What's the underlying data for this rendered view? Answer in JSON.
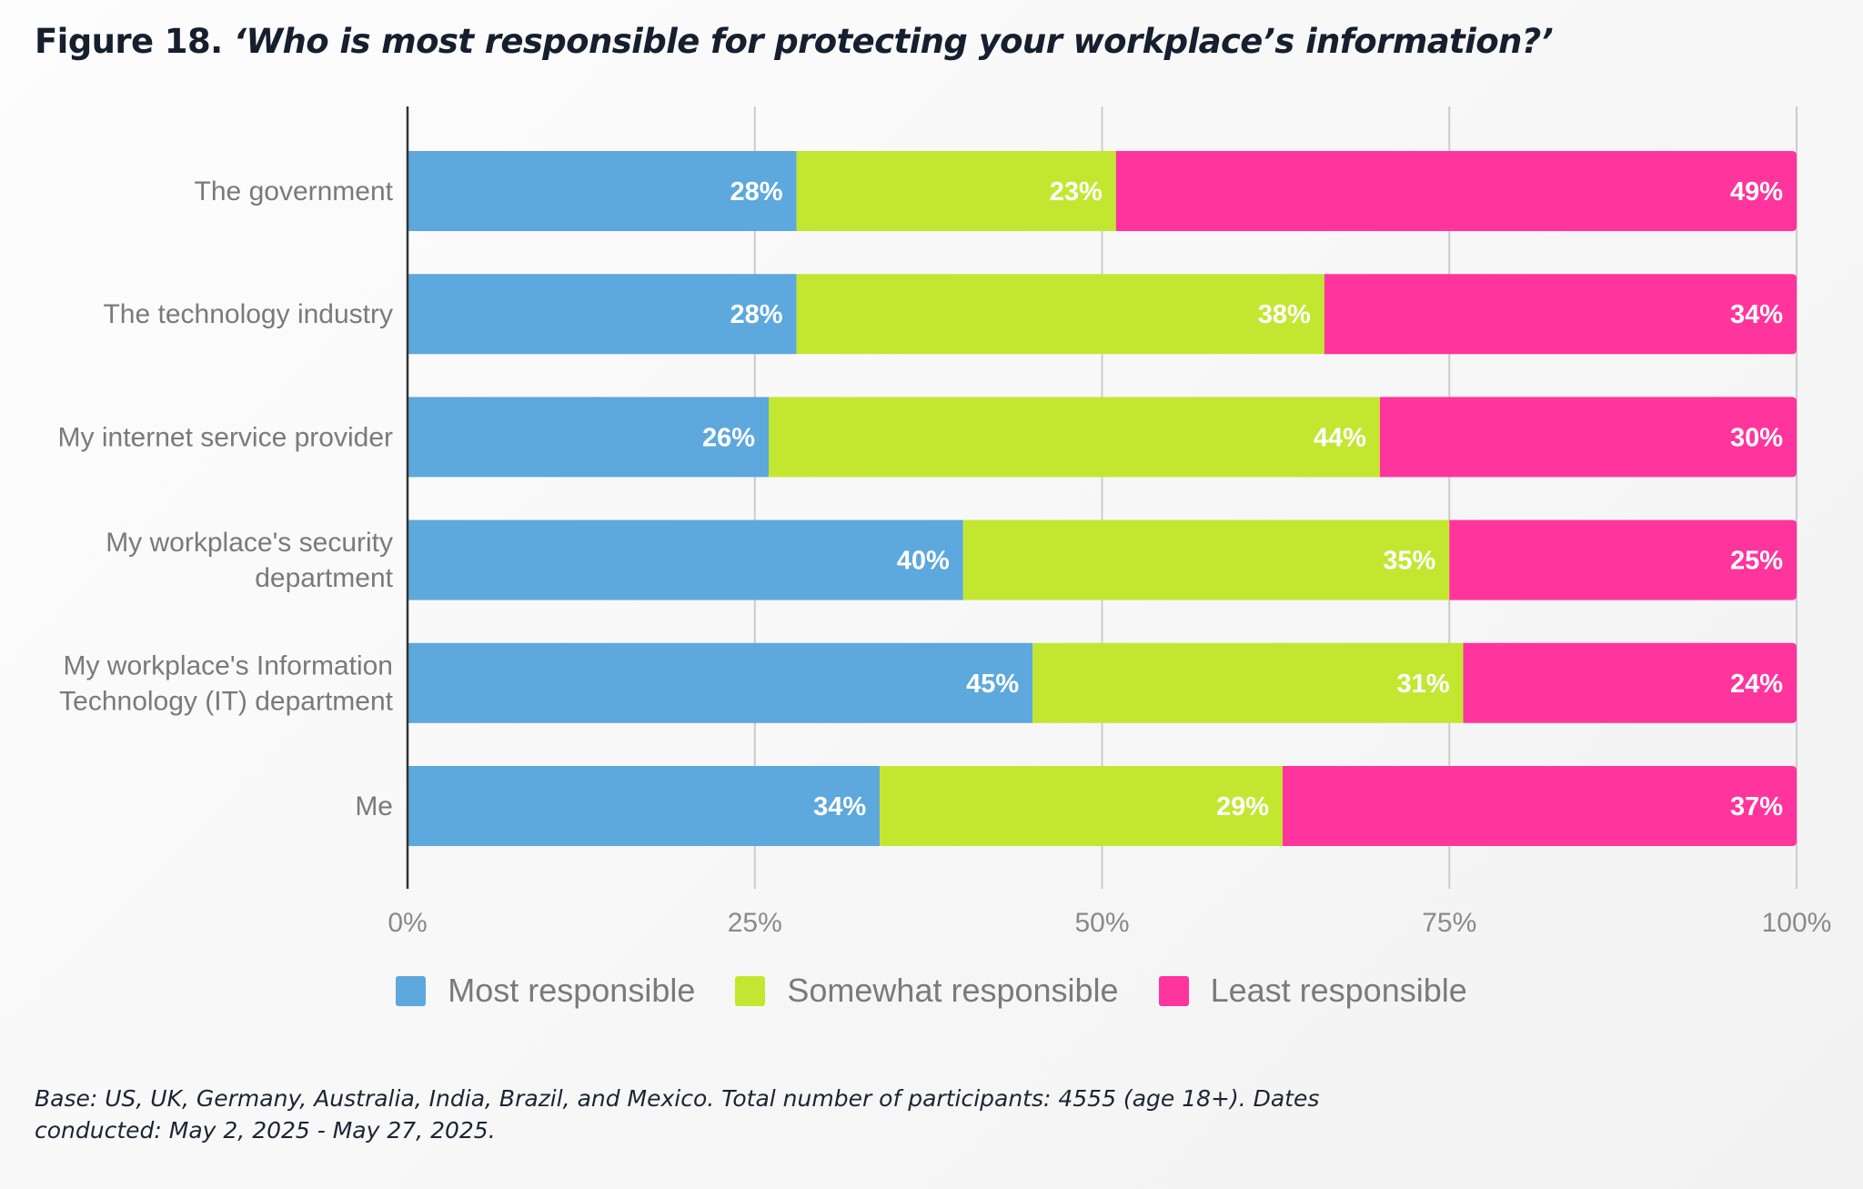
{
  "figure": {
    "label": "Figure 18.",
    "question": "‘Who is most responsible for protecting your workplace’s information?’",
    "footnote": "Base: US, UK, Germany, Australia, India, Brazil, and Mexico. Total number of participants: 4555 (age 18+). Dates conducted: May 2, 2025 - May 27, 2025."
  },
  "colors": {
    "most": "#5da8dc",
    "somewhat": "#c3e731",
    "least": "#ff349c",
    "axis": "#333333",
    "grid": "#cccccc"
  },
  "chart_data": {
    "type": "bar",
    "orientation": "horizontal",
    "stacked": true,
    "title": "Figure 18. ‘Who is most responsible for protecting your workplace’s information?’",
    "xlabel": "",
    "ylabel": "",
    "xlim": [
      0,
      100
    ],
    "grid": true,
    "legend_position": "bottom-center",
    "x_ticks": [
      0,
      25,
      50,
      75,
      100
    ],
    "x_tick_labels": [
      "0%",
      "25%",
      "50%",
      "75%",
      "100%"
    ],
    "categories": [
      [
        "The government"
      ],
      [
        "The technology industry"
      ],
      [
        "My internet service provider"
      ],
      [
        "My workplace's security",
        "department"
      ],
      [
        "My workplace's Information",
        "Technology (IT) department"
      ],
      [
        "Me"
      ]
    ],
    "series": [
      {
        "name": "Most responsible",
        "key": "most",
        "values": [
          28,
          28,
          26,
          40,
          45,
          34
        ]
      },
      {
        "name": "Somewhat responsible",
        "key": "somewhat",
        "values": [
          23,
          38,
          44,
          35,
          31,
          29
        ]
      },
      {
        "name": "Least responsible",
        "key": "least",
        "values": [
          49,
          34,
          30,
          25,
          24,
          37
        ]
      }
    ],
    "value_suffix": "%"
  }
}
